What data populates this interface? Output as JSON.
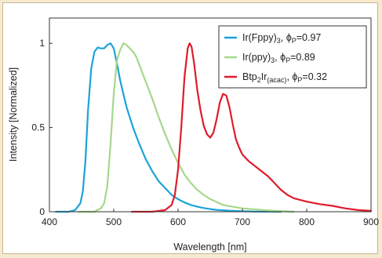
{
  "chart_data": {
    "type": "line",
    "xlabel": "Wavelength [nm]",
    "ylabel": "Intensity [Normalized]",
    "xlim": [
      400,
      900
    ],
    "ylim": [
      0,
      1.15
    ],
    "xticks": [
      "400",
      "500",
      "600",
      "700",
      "800",
      "900"
    ],
    "yticks": [
      "0",
      "0.5",
      "1"
    ],
    "legend_position": "top-right",
    "grid": false,
    "series": [
      {
        "name": "Ir(Fppy)3, ϕP=0.97",
        "legend": {
          "main": "Ir(Fppy)",
          "sub1": "3",
          "sep": ", ϕ",
          "sub2": "P",
          "tail": "=0.97"
        },
        "color": "#1ba3d8",
        "x": [
          410,
          430,
          440,
          448,
          452,
          456,
          460,
          465,
          470,
          475,
          480,
          485,
          490,
          495,
          500,
          505,
          510,
          515,
          520,
          530,
          540,
          550,
          560,
          570,
          580,
          590,
          600,
          610,
          620,
          630,
          640,
          650,
          660,
          680,
          700,
          720,
          760
        ],
        "y": [
          0.0,
          0.0,
          0.01,
          0.05,
          0.12,
          0.3,
          0.6,
          0.85,
          0.95,
          0.975,
          0.97,
          0.97,
          0.99,
          1.0,
          0.97,
          0.88,
          0.78,
          0.7,
          0.62,
          0.5,
          0.4,
          0.31,
          0.24,
          0.18,
          0.14,
          0.1,
          0.075,
          0.055,
          0.04,
          0.03,
          0.022,
          0.016,
          0.011,
          0.006,
          0.003,
          0.001,
          0.0
        ]
      },
      {
        "name": "Ir(ppy)3, ϕP=0.89",
        "legend": {
          "main": "Ir(ppy)",
          "sub1": "3",
          "sep": ", ϕ",
          "sub2": "P",
          "tail": "=0.89"
        },
        "color": "#a6d88a",
        "x": [
          445,
          470,
          480,
          485,
          490,
          495,
          500,
          505,
          510,
          515,
          520,
          525,
          530,
          535,
          540,
          545,
          550,
          560,
          570,
          580,
          590,
          600,
          610,
          620,
          630,
          640,
          650,
          670,
          700,
          740,
          780
        ],
        "y": [
          0.0,
          0.0,
          0.02,
          0.05,
          0.15,
          0.4,
          0.7,
          0.9,
          0.96,
          1.0,
          0.99,
          0.97,
          0.95,
          0.92,
          0.87,
          0.82,
          0.77,
          0.67,
          0.56,
          0.46,
          0.37,
          0.29,
          0.22,
          0.17,
          0.13,
          0.1,
          0.075,
          0.04,
          0.02,
          0.008,
          0.0
        ]
      },
      {
        "name": "Btp2Ir(acac), ϕP=0.32",
        "legend": {
          "main": "Btp",
          "sub1": "2",
          "mid": "Ir",
          "sub3": "(acac)",
          "sep": ", ϕ",
          "sub2": "P",
          "tail": "=0.32"
        },
        "color": "#e01b2c",
        "x": [
          528,
          560,
          580,
          590,
          595,
          600,
          605,
          610,
          615,
          618,
          621,
          625,
          630,
          635,
          640,
          645,
          650,
          655,
          660,
          665,
          670,
          675,
          680,
          685,
          690,
          695,
          700,
          710,
          720,
          730,
          740,
          750,
          760,
          770,
          780,
          800,
          820,
          840,
          860,
          880,
          900
        ],
        "y": [
          0.0,
          0.0,
          0.01,
          0.04,
          0.1,
          0.25,
          0.5,
          0.8,
          0.97,
          1.0,
          0.98,
          0.88,
          0.72,
          0.6,
          0.51,
          0.46,
          0.44,
          0.47,
          0.55,
          0.65,
          0.7,
          0.69,
          0.62,
          0.52,
          0.43,
          0.38,
          0.34,
          0.3,
          0.27,
          0.24,
          0.21,
          0.17,
          0.13,
          0.1,
          0.08,
          0.06,
          0.045,
          0.035,
          0.02,
          0.01,
          0.005
        ]
      }
    ]
  }
}
